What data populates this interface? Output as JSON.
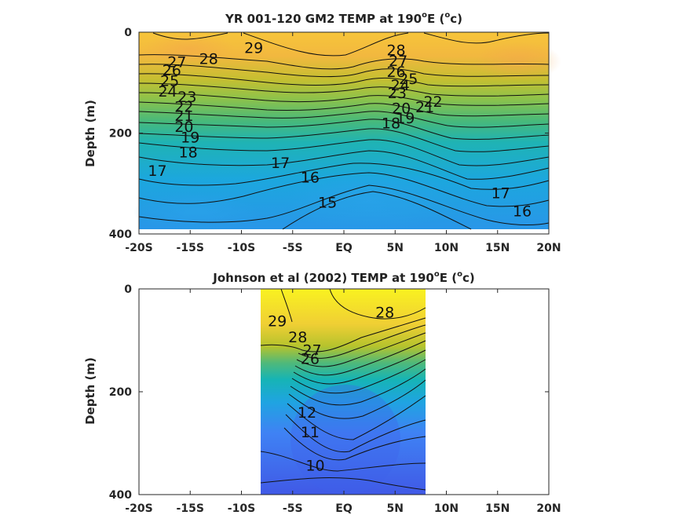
{
  "chart_data": [
    {
      "type": "contour",
      "title": "YR 001-120 GM2 TEMP at 190",
      "title_sup": "o",
      "title_tail": "E (",
      "title_unit_sup": "o",
      "title_unit": "c)",
      "ylabel": "Depth (m)",
      "xlim": [
        -20,
        20
      ],
      "ylim": [
        0,
        400
      ],
      "y_reversed": true,
      "x_ticks": [
        "-20S",
        "-15S",
        "-10S",
        "-5S",
        "EQ",
        "5N",
        "10N",
        "15N",
        "20N"
      ],
      "x_tick_values": [
        -20,
        -15,
        -10,
        -5,
        0,
        5,
        10,
        15,
        20
      ],
      "y_ticks": [
        "0",
        "200",
        "400"
      ],
      "y_tick_values": [
        0,
        200,
        400
      ],
      "data_extent_x": [
        -20,
        20
      ],
      "data_extent_y": [
        0,
        390
      ],
      "contour_levels": [
        15,
        16,
        17,
        18,
        19,
        20,
        21,
        22,
        23,
        24,
        25,
        26,
        27,
        28,
        29
      ],
      "contour_labels": [
        {
          "text": "29",
          "x": -8.8,
          "y": 30
        },
        {
          "text": "28",
          "x": -13.2,
          "y": 52
        },
        {
          "text": "27",
          "x": -16.3,
          "y": 58
        },
        {
          "text": "26",
          "x": -16.8,
          "y": 75
        },
        {
          "text": "25",
          "x": -17.0,
          "y": 96
        },
        {
          "text": "24",
          "x": -17.2,
          "y": 117
        },
        {
          "text": "23",
          "x": -15.3,
          "y": 128
        },
        {
          "text": "22",
          "x": -15.6,
          "y": 147
        },
        {
          "text": "21",
          "x": -15.6,
          "y": 165
        },
        {
          "text": "20",
          "x": -15.6,
          "y": 187
        },
        {
          "text": "19",
          "x": -15.0,
          "y": 208
        },
        {
          "text": "18",
          "x": -15.2,
          "y": 237
        },
        {
          "text": "17",
          "x": -18.2,
          "y": 274
        },
        {
          "text": "17",
          "x": -6.2,
          "y": 258
        },
        {
          "text": "16",
          "x": -3.3,
          "y": 287
        },
        {
          "text": "15",
          "x": -1.6,
          "y": 337
        },
        {
          "text": "28",
          "x": 5.1,
          "y": 35
        },
        {
          "text": "27",
          "x": 5.3,
          "y": 56
        },
        {
          "text": "26",
          "x": 5.1,
          "y": 78
        },
        {
          "text": "25",
          "x": 6.3,
          "y": 92
        },
        {
          "text": "24",
          "x": 5.5,
          "y": 104
        },
        {
          "text": "23",
          "x": 5.2,
          "y": 120
        },
        {
          "text": "22",
          "x": 8.7,
          "y": 137
        },
        {
          "text": "21",
          "x": 7.9,
          "y": 148
        },
        {
          "text": "20",
          "x": 5.6,
          "y": 150
        },
        {
          "text": "19",
          "x": 6.0,
          "y": 170
        },
        {
          "text": "18",
          "x": 4.6,
          "y": 180
        },
        {
          "text": "17",
          "x": 15.3,
          "y": 318
        },
        {
          "text": "16",
          "x": 17.4,
          "y": 354
        }
      ]
    },
    {
      "type": "contour",
      "title": "Johnson et al (2002) TEMP at 190",
      "title_sup": "o",
      "title_tail": "E (",
      "title_unit_sup": "o",
      "title_unit": "c)",
      "ylabel": "Depth (m)",
      "xlim": [
        -20,
        20
      ],
      "ylim": [
        0,
        400
      ],
      "y_reversed": true,
      "x_ticks": [
        "-20S",
        "-15S",
        "-10S",
        "-5S",
        "EQ",
        "5N",
        "10N",
        "15N",
        "20N"
      ],
      "x_tick_values": [
        -20,
        -15,
        -10,
        -5,
        0,
        5,
        10,
        15,
        20
      ],
      "y_ticks": [
        "0",
        "200",
        "400"
      ],
      "y_tick_values": [
        0,
        200,
        400
      ],
      "data_extent_x": [
        -8,
        8
      ],
      "data_extent_y": [
        0,
        400
      ],
      "contour_levels": [
        10,
        11,
        12,
        13,
        14,
        15,
        16,
        17,
        18,
        19,
        20,
        21,
        22,
        23,
        24,
        25,
        26,
        27,
        28,
        29
      ],
      "contour_labels": [
        {
          "text": "29",
          "x": -6.5,
          "y": 62
        },
        {
          "text": "28",
          "x": -4.5,
          "y": 93
        },
        {
          "text": "27",
          "x": -3.1,
          "y": 118
        },
        {
          "text": "26",
          "x": -3.3,
          "y": 135
        },
        {
          "text": "12",
          "x": -3.6,
          "y": 240
        },
        {
          "text": "11",
          "x": -3.3,
          "y": 278
        },
        {
          "text": "10",
          "x": -2.8,
          "y": 343
        },
        {
          "text": "28",
          "x": 4.0,
          "y": 45
        }
      ]
    }
  ]
}
